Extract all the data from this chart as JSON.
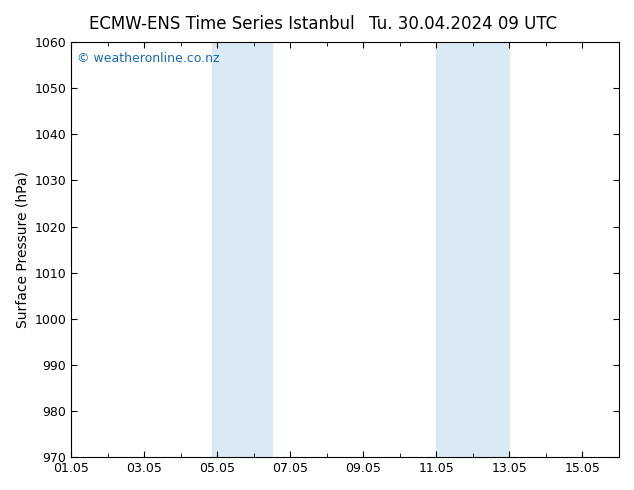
{
  "title_left": "ECMW-ENS Time Series Istanbul",
  "title_right": "Tu. 30.04.2024 09 UTC",
  "ylabel": "Surface Pressure (hPa)",
  "ylim": [
    970,
    1060
  ],
  "yticks": [
    970,
    980,
    990,
    1000,
    1010,
    1020,
    1030,
    1040,
    1050,
    1060
  ],
  "xlim": [
    0,
    15
  ],
  "xtick_labels": [
    "01.05",
    "03.05",
    "05.05",
    "07.05",
    "09.05",
    "11.05",
    "13.05",
    "15.05"
  ],
  "xtick_positions": [
    0,
    2,
    4,
    6,
    8,
    10,
    12,
    14
  ],
  "minor_xtick_positions": [
    1,
    3,
    5,
    7,
    9,
    11,
    13
  ],
  "shaded_bands": [
    {
      "x_start": 3.85,
      "x_end": 5.5
    },
    {
      "x_start": 10.0,
      "x_end": 12.0
    }
  ],
  "shaded_color": "#daeaf5",
  "background_color": "#ffffff",
  "plot_bg_color": "#ffffff",
  "watermark_text": "© weatheronline.co.nz",
  "watermark_color": "#1a6ab5",
  "title_fontsize": 12,
  "label_fontsize": 10,
  "tick_fontsize": 9,
  "watermark_fontsize": 9,
  "spine_color": "#000000"
}
